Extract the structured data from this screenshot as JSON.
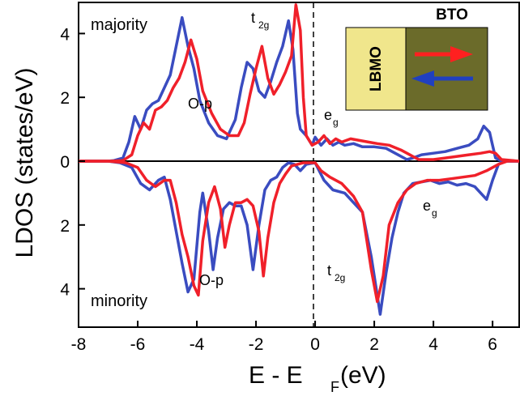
{
  "chart_data": {
    "type": "line",
    "xlabel": "E - E",
    "xlabel_sub": "F",
    "xlabel_unit": " (eV)",
    "ylabel": "LDOS (states/eV)",
    "xlim": [
      -8,
      6.9
    ],
    "ylim_majority": [
      0,
      5
    ],
    "ylim_minority": [
      0,
      5
    ],
    "x_ticks": [
      "-8",
      "-6",
      "-4",
      "-2",
      "0",
      "2",
      "4",
      "6"
    ],
    "y_ticks_majority": [
      "4",
      "2",
      "0"
    ],
    "y_ticks_minority": [
      "2",
      "4"
    ],
    "panels": {
      "majority": "majority",
      "minority": "minority"
    },
    "annotations": [
      {
        "text": "t",
        "sub": "2g",
        "where": "majority"
      },
      {
        "text": "O-p",
        "where": "majority"
      },
      {
        "text": "e",
        "sub": "g",
        "where": "majority"
      },
      {
        "text": "O-p",
        "where": "minority"
      },
      {
        "text": "t",
        "sub": "2g",
        "where": "minority"
      },
      {
        "text": "e",
        "sub": "g",
        "where": "minority"
      }
    ],
    "inset": {
      "left_label": "LBMO",
      "right_label": "BTO",
      "left_color": "#f0e68c",
      "right_color": "#6b6b2a",
      "arrow_up_color": "#ff2020",
      "arrow_down_color": "#2040c0"
    },
    "series": [
      {
        "color": "#3a4cc0",
        "majority": [
          [
            -8,
            0
          ],
          [
            -7,
            0
          ],
          [
            -6.8,
            0.02
          ],
          [
            -6.5,
            0.1
          ],
          [
            -6.3,
            0.6
          ],
          [
            -6.1,
            1.4
          ],
          [
            -5.9,
            1.0
          ],
          [
            -5.7,
            1.6
          ],
          [
            -5.5,
            1.8
          ],
          [
            -5.3,
            1.9
          ],
          [
            -5.1,
            2.3
          ],
          [
            -4.9,
            2.7
          ],
          [
            -4.7,
            3.6
          ],
          [
            -4.5,
            4.5
          ],
          [
            -4.3,
            3.6
          ],
          [
            -4.1,
            2.9
          ],
          [
            -3.9,
            1.9
          ],
          [
            -3.6,
            1.2
          ],
          [
            -3.3,
            0.8
          ],
          [
            -3.0,
            0.7
          ],
          [
            -2.7,
            1.3
          ],
          [
            -2.5,
            2.3
          ],
          [
            -2.3,
            3.1
          ],
          [
            -2.1,
            2.9
          ],
          [
            -1.9,
            2.2
          ],
          [
            -1.7,
            2.0
          ],
          [
            -1.5,
            2.5
          ],
          [
            -1.3,
            3.1
          ],
          [
            -1.1,
            3.6
          ],
          [
            -0.9,
            4.4
          ],
          [
            -0.75,
            3.5
          ],
          [
            -0.6,
            1.5
          ],
          [
            -0.5,
            1.0
          ],
          [
            -0.3,
            0.8
          ],
          [
            -0.1,
            0.5
          ],
          [
            0,
            0.75
          ],
          [
            0.2,
            0.5
          ],
          [
            0.4,
            0.7
          ],
          [
            0.6,
            0.5
          ],
          [
            0.8,
            0.6
          ],
          [
            1.0,
            0.5
          ],
          [
            1.3,
            0.55
          ],
          [
            1.6,
            0.45
          ],
          [
            2.0,
            0.45
          ],
          [
            2.4,
            0.4
          ],
          [
            2.8,
            0.2
          ],
          [
            3.1,
            0.05
          ],
          [
            3.3,
            0.1
          ],
          [
            3.6,
            0.2
          ],
          [
            4.0,
            0.25
          ],
          [
            4.4,
            0.3
          ],
          [
            4.8,
            0.4
          ],
          [
            5.2,
            0.5
          ],
          [
            5.5,
            0.7
          ],
          [
            5.7,
            1.1
          ],
          [
            5.9,
            0.9
          ],
          [
            6.0,
            0.5
          ],
          [
            6.1,
            0.1
          ],
          [
            6.3,
            0
          ],
          [
            6.9,
            0
          ]
        ],
        "minority": [
          [
            -8,
            0
          ],
          [
            -7,
            0
          ],
          [
            -6.6,
            0.05
          ],
          [
            -6.2,
            0.2
          ],
          [
            -5.9,
            0.7
          ],
          [
            -5.6,
            0.9
          ],
          [
            -5.3,
            0.6
          ],
          [
            -5.1,
            0.5
          ],
          [
            -4.9,
            1.2
          ],
          [
            -4.7,
            2.2
          ],
          [
            -4.5,
            3.2
          ],
          [
            -4.3,
            4.1
          ],
          [
            -4.1,
            3.7
          ],
          [
            -3.9,
            1.6
          ],
          [
            -3.8,
            1.0
          ],
          [
            -3.6,
            2.2
          ],
          [
            -3.45,
            3.4
          ],
          [
            -3.3,
            2.4
          ],
          [
            -3.1,
            1.5
          ],
          [
            -2.9,
            1.3
          ],
          [
            -2.7,
            1.4
          ],
          [
            -2.5,
            1.4
          ],
          [
            -2.3,
            2.0
          ],
          [
            -2.1,
            3.4
          ],
          [
            -1.9,
            2.0
          ],
          [
            -1.7,
            0.9
          ],
          [
            -1.5,
            0.6
          ],
          [
            -1.3,
            0.5
          ],
          [
            -1.1,
            0.2
          ],
          [
            -0.9,
            0.05
          ],
          [
            -0.7,
            0.1
          ],
          [
            -0.5,
            0.3
          ],
          [
            -0.3,
            0.1
          ],
          [
            0,
            0.05
          ],
          [
            0.3,
            0.6
          ],
          [
            0.6,
            0.9
          ],
          [
            1.0,
            1.0
          ],
          [
            1.3,
            1.3
          ],
          [
            1.6,
            1.6
          ],
          [
            1.9,
            3.0
          ],
          [
            2.2,
            4.8
          ],
          [
            2.4,
            3.5
          ],
          [
            2.6,
            2.4
          ],
          [
            2.8,
            1.6
          ],
          [
            3.0,
            1.0
          ],
          [
            3.3,
            0.7
          ],
          [
            3.6,
            0.65
          ],
          [
            3.9,
            0.6
          ],
          [
            4.2,
            0.7
          ],
          [
            4.5,
            0.65
          ],
          [
            4.8,
            0.75
          ],
          [
            5.1,
            0.7
          ],
          [
            5.4,
            0.8
          ],
          [
            5.6,
            1.0
          ],
          [
            5.8,
            1.2
          ],
          [
            6.0,
            0.6
          ],
          [
            6.2,
            0.1
          ],
          [
            6.4,
            0
          ],
          [
            6.9,
            0
          ]
        ]
      },
      {
        "color": "#f0202a",
        "majority": [
          [
            -8,
            0
          ],
          [
            -7,
            0
          ],
          [
            -6.5,
            0.02
          ],
          [
            -6.2,
            0.2
          ],
          [
            -6.0,
            0.8
          ],
          [
            -5.8,
            1.2
          ],
          [
            -5.6,
            1.0
          ],
          [
            -5.4,
            1.6
          ],
          [
            -5.2,
            1.7
          ],
          [
            -5.0,
            1.9
          ],
          [
            -4.8,
            2.3
          ],
          [
            -4.6,
            2.6
          ],
          [
            -4.4,
            3.1
          ],
          [
            -4.2,
            3.8
          ],
          [
            -4.0,
            3.2
          ],
          [
            -3.8,
            2.2
          ],
          [
            -3.5,
            1.5
          ],
          [
            -3.2,
            1.0
          ],
          [
            -2.9,
            0.8
          ],
          [
            -2.6,
            0.8
          ],
          [
            -2.4,
            1.2
          ],
          [
            -2.2,
            2.1
          ],
          [
            -2.0,
            2.9
          ],
          [
            -1.8,
            3.6
          ],
          [
            -1.6,
            2.6
          ],
          [
            -1.4,
            2.1
          ],
          [
            -1.2,
            2.4
          ],
          [
            -1.0,
            2.8
          ],
          [
            -0.8,
            3.3
          ],
          [
            -0.65,
            4.9
          ],
          [
            -0.5,
            4.1
          ],
          [
            -0.4,
            2.0
          ],
          [
            -0.3,
            0.8
          ],
          [
            -0.1,
            0.5
          ],
          [
            0.1,
            0.6
          ],
          [
            0.3,
            0.8
          ],
          [
            0.5,
            0.55
          ],
          [
            0.7,
            0.7
          ],
          [
            0.9,
            0.6
          ],
          [
            1.2,
            0.7
          ],
          [
            1.5,
            0.65
          ],
          [
            1.8,
            0.6
          ],
          [
            2.1,
            0.55
          ],
          [
            2.5,
            0.5
          ],
          [
            2.9,
            0.35
          ],
          [
            3.2,
            0.2
          ],
          [
            3.5,
            0.05
          ],
          [
            4.0,
            0.05
          ],
          [
            4.4,
            0.1
          ],
          [
            4.8,
            0.15
          ],
          [
            5.2,
            0.2
          ],
          [
            5.6,
            0.25
          ],
          [
            5.9,
            0.3
          ],
          [
            6.1,
            0.25
          ],
          [
            6.3,
            0.05
          ],
          [
            6.9,
            0
          ]
        ],
        "minority": [
          [
            -8,
            0
          ],
          [
            -7,
            0
          ],
          [
            -6.4,
            0.05
          ],
          [
            -6.0,
            0.2
          ],
          [
            -5.7,
            0.6
          ],
          [
            -5.4,
            0.8
          ],
          [
            -5.1,
            0.6
          ],
          [
            -4.9,
            0.6
          ],
          [
            -4.7,
            1.3
          ],
          [
            -4.5,
            2.3
          ],
          [
            -4.3,
            3.0
          ],
          [
            -4.1,
            3.9
          ],
          [
            -3.95,
            4.2
          ],
          [
            -3.8,
            2.5
          ],
          [
            -3.6,
            1.3
          ],
          [
            -3.4,
            0.8
          ],
          [
            -3.2,
            1.5
          ],
          [
            -3.05,
            2.7
          ],
          [
            -2.9,
            2.0
          ],
          [
            -2.7,
            1.3
          ],
          [
            -2.5,
            1.3
          ],
          [
            -2.3,
            1.2
          ],
          [
            -2.1,
            1.4
          ],
          [
            -1.9,
            2.2
          ],
          [
            -1.75,
            3.6
          ],
          [
            -1.6,
            2.4
          ],
          [
            -1.4,
            1.3
          ],
          [
            -1.2,
            0.7
          ],
          [
            -1.0,
            0.4
          ],
          [
            -0.8,
            0.15
          ],
          [
            -0.6,
            0.1
          ],
          [
            -0.4,
            0.05
          ],
          [
            0,
            0.05
          ],
          [
            0.2,
            0.3
          ],
          [
            0.5,
            0.5
          ],
          [
            0.9,
            0.7
          ],
          [
            1.3,
            1.1
          ],
          [
            1.6,
            1.6
          ],
          [
            1.9,
            3.4
          ],
          [
            2.1,
            4.4
          ],
          [
            2.3,
            3.6
          ],
          [
            2.5,
            2.0
          ],
          [
            2.8,
            1.3
          ],
          [
            3.1,
            0.9
          ],
          [
            3.4,
            0.7
          ],
          [
            3.8,
            0.6
          ],
          [
            4.2,
            0.6
          ],
          [
            4.6,
            0.55
          ],
          [
            5.0,
            0.5
          ],
          [
            5.4,
            0.45
          ],
          [
            5.8,
            0.3
          ],
          [
            6.2,
            0.1
          ],
          [
            6.5,
            0
          ],
          [
            6.9,
            0
          ]
        ]
      }
    ]
  }
}
